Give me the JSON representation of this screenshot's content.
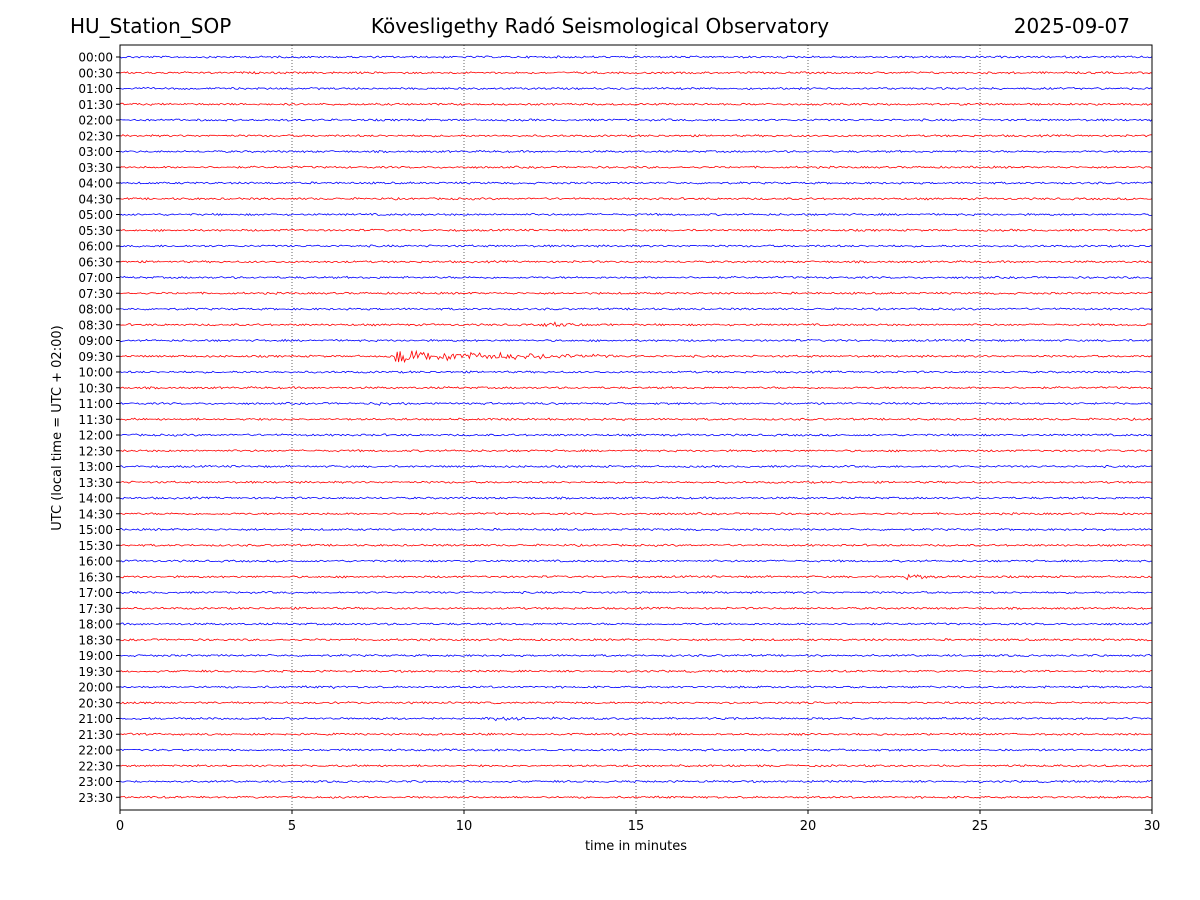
{
  "header": {
    "station": "HU_Station_SOP",
    "observatory": "Kövesligethy Radó Seismological Observatory",
    "date": "2025-09-07"
  },
  "chart_data": {
    "type": "line",
    "title": "Kövesligethy Radó Seismological Observatory",
    "xlabel": "time in minutes",
    "ylabel": "UTC (local time = UTC + 02:00)",
    "xlim": [
      0,
      30
    ],
    "x_ticks": [
      "0",
      "5",
      "10",
      "15",
      "20",
      "25",
      "30"
    ],
    "x_tick_values": [
      0,
      5,
      10,
      15,
      20,
      25,
      30
    ],
    "grid": "vertical dotted at x ticks",
    "rows": [
      "00:00",
      "00:30",
      "01:00",
      "01:30",
      "02:00",
      "02:30",
      "03:00",
      "03:30",
      "04:00",
      "04:30",
      "05:00",
      "05:30",
      "06:00",
      "06:30",
      "07:00",
      "07:30",
      "08:00",
      "08:30",
      "09:00",
      "09:30",
      "10:00",
      "10:30",
      "11:00",
      "11:30",
      "12:00",
      "12:30",
      "13:00",
      "13:30",
      "14:00",
      "14:30",
      "15:00",
      "15:30",
      "16:00",
      "16:30",
      "17:00",
      "17:30",
      "18:00",
      "18:30",
      "19:00",
      "19:30",
      "20:00",
      "20:30",
      "21:00",
      "21:30",
      "22:00",
      "22:30",
      "23:00",
      "23:30"
    ],
    "colors": [
      "#0000ff",
      "#ff0000"
    ],
    "noise_amplitude": 1,
    "events": [
      {
        "row": "08:30",
        "start_min": 12.3,
        "end_min": 14.5,
        "amplitude": 3.5
      },
      {
        "row": "08:30",
        "start_min": 29.7,
        "end_min": 30,
        "amplitude": 2.5
      },
      {
        "row": "09:30",
        "start_min": 8.0,
        "end_min": 14.5,
        "amplitude": 8.5
      },
      {
        "row": "11:00",
        "start_min": 7.5,
        "end_min": 10.0,
        "amplitude": 2.5
      },
      {
        "row": "11:30",
        "start_min": 11.0,
        "end_min": 12.5,
        "amplitude": 2.0
      },
      {
        "row": "16:30",
        "start_min": 22.8,
        "end_min": 24.5,
        "amplitude": 4.0
      },
      {
        "row": "19:00",
        "start_min": 20.4,
        "end_min": 20.6,
        "amplitude": 3.0
      },
      {
        "row": "20:00",
        "start_min": 6.2,
        "end_min": 6.6,
        "amplitude": 2.5
      },
      {
        "row": "21:00",
        "start_min": 10.5,
        "end_min": 17.5,
        "amplitude": 2.5
      }
    ]
  }
}
